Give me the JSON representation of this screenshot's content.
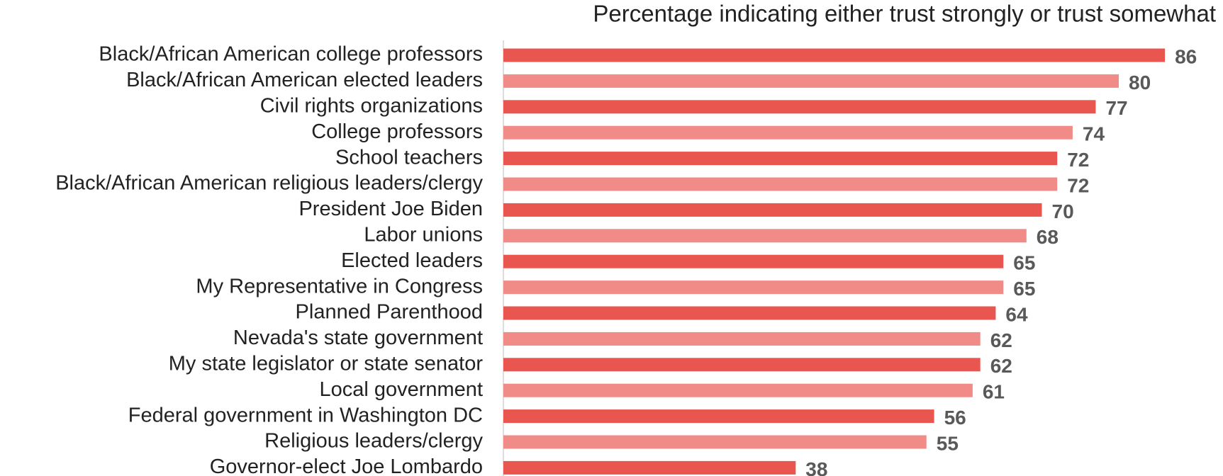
{
  "chart_data": {
    "type": "barh",
    "title": "Percentage indicating either trust strongly or trust somewhat",
    "categories": [
      "Black/African American college professors",
      "Black/African American elected leaders",
      "Civil rights organizations",
      "College professors",
      "School teachers",
      "Black/African American religious leaders/clergy",
      "President Joe Biden",
      "Labor unions",
      "Elected leaders",
      "My Representative in Congress",
      "Planned Parenthood",
      "Nevada's state government",
      "My state legislator or state senator",
      "Local government",
      "Federal government in Washington DC",
      "Religious leaders/clergy",
      "Governor-elect Joe Lombardo"
    ],
    "values": [
      86,
      80,
      77,
      74,
      72,
      72,
      70,
      68,
      65,
      65,
      64,
      62,
      62,
      61,
      56,
      55,
      38
    ],
    "colors": [
      "#e9564f",
      "#f08b87"
    ]
  }
}
